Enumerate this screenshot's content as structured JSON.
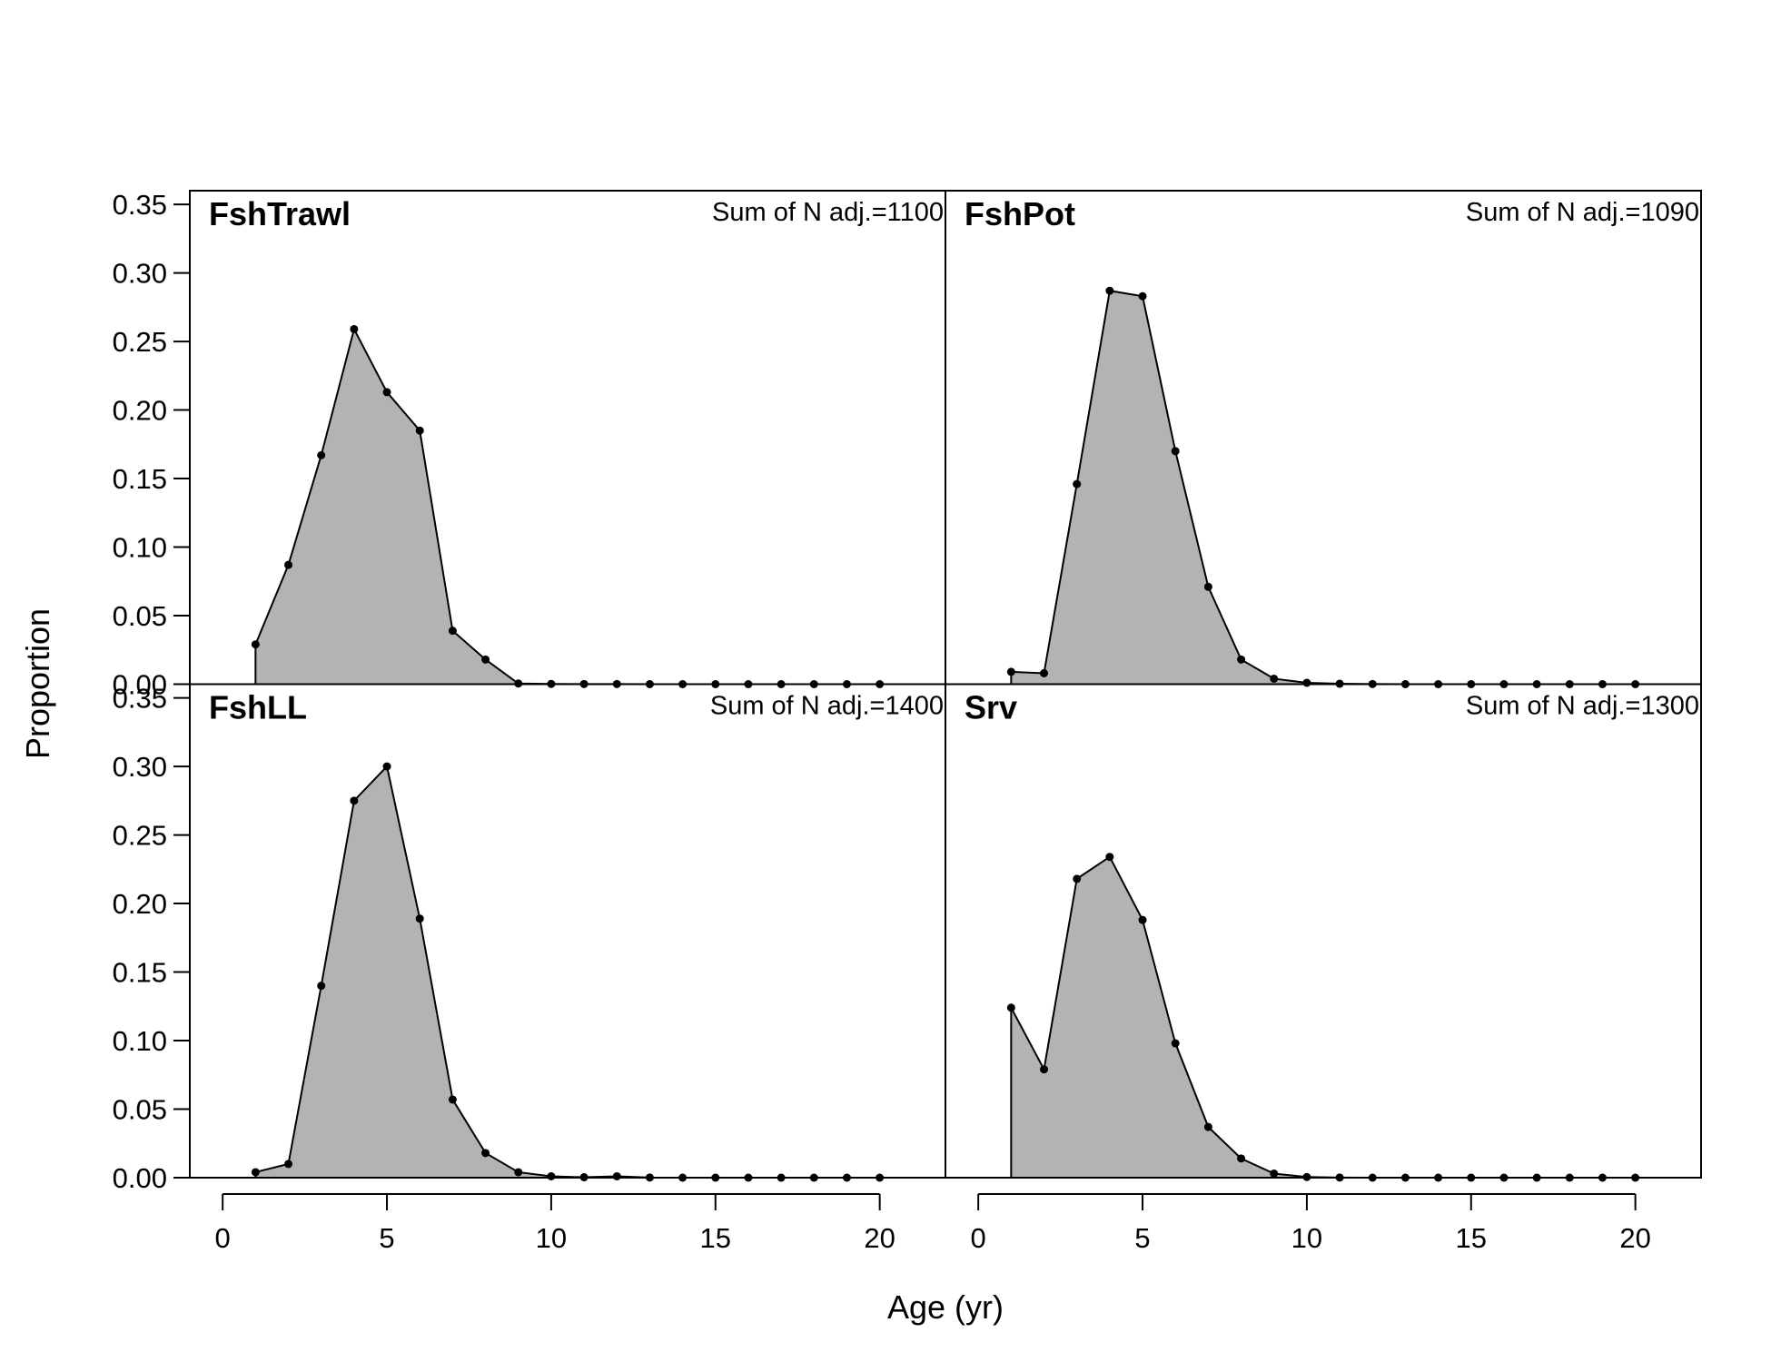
{
  "chart_data": {
    "type": "area",
    "xlabel": "Age (yr)",
    "ylabel": "Proportion",
    "xlim": [
      -1,
      22
    ],
    "ylim": [
      0,
      0.36
    ],
    "x_ticks": [
      0,
      5,
      10,
      15,
      20
    ],
    "y_ticks": [
      0.0,
      0.05,
      0.1,
      0.15,
      0.2,
      0.25,
      0.3,
      0.35
    ],
    "y_tick_labels": [
      "0.00",
      "0.05",
      "0.10",
      "0.15",
      "0.20",
      "0.25",
      "0.30",
      "0.35"
    ],
    "grid": false,
    "fill_color": "#b3b3b3",
    "line_color": "#000000",
    "panels": [
      {
        "title": "FshTrawl",
        "note": "Sum of N adj.=1100",
        "x": [
          1,
          2,
          3,
          4,
          5,
          6,
          7,
          8,
          9,
          10,
          11,
          12,
          13,
          14,
          15,
          16,
          17,
          18,
          19,
          20
        ],
        "values": [
          0.029,
          0.087,
          0.167,
          0.259,
          0.213,
          0.185,
          0.039,
          0.018,
          0.0005,
          0.0002,
          0.0001,
          0.0001,
          0,
          0,
          0,
          0,
          0,
          0,
          0,
          0
        ]
      },
      {
        "title": "FshPot",
        "note": "Sum of N adj.=1090",
        "x": [
          1,
          2,
          3,
          4,
          5,
          6,
          7,
          8,
          9,
          10,
          11,
          12,
          13,
          14,
          15,
          16,
          17,
          18,
          19,
          20
        ],
        "values": [
          0.009,
          0.008,
          0.146,
          0.287,
          0.283,
          0.17,
          0.071,
          0.018,
          0.004,
          0.001,
          0.0003,
          0.0001,
          0,
          0,
          0,
          0,
          0,
          0,
          0,
          0
        ]
      },
      {
        "title": "FshLL",
        "note": "Sum of N adj.=1400",
        "x": [
          1,
          2,
          3,
          4,
          5,
          6,
          7,
          8,
          9,
          10,
          11,
          12,
          13,
          14,
          15,
          16,
          17,
          18,
          19,
          20
        ],
        "values": [
          0.004,
          0.01,
          0.14,
          0.275,
          0.3,
          0.189,
          0.057,
          0.018,
          0.004,
          0.001,
          0.0003,
          0.001,
          0.0001,
          0,
          0,
          0,
          0,
          0,
          0,
          0
        ]
      },
      {
        "title": "Srv",
        "note": "Sum of N adj.=1300",
        "x": [
          1,
          2,
          3,
          4,
          5,
          6,
          7,
          8,
          9,
          10,
          11,
          12,
          13,
          14,
          15,
          16,
          17,
          18,
          19,
          20
        ],
        "values": [
          0.124,
          0.079,
          0.218,
          0.234,
          0.188,
          0.098,
          0.037,
          0.014,
          0.003,
          0.0005,
          0.0001,
          0,
          0,
          0,
          0,
          0,
          0,
          0,
          0,
          0
        ]
      }
    ]
  }
}
